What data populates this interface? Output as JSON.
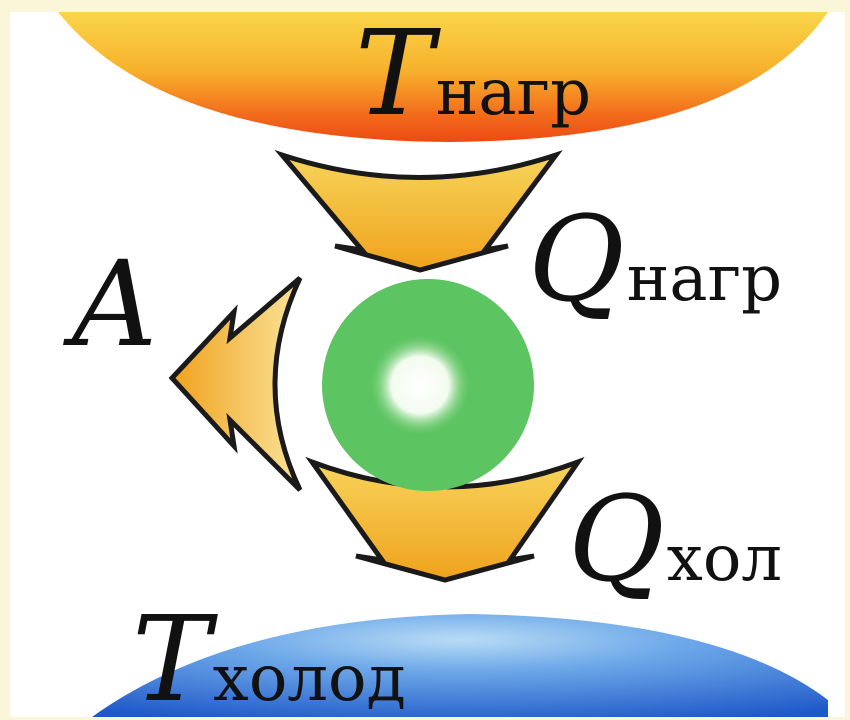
{
  "diagram": {
    "hot_reservoir": {
      "symbol": "T",
      "subscript": "нагр",
      "color": "#f26a1b"
    },
    "cold_reservoir": {
      "symbol": "T",
      "subscript": "холод",
      "color": "#2f6fd6"
    },
    "heat_in": {
      "symbol": "Q",
      "subscript": "нагр"
    },
    "heat_out": {
      "symbol": "Q",
      "subscript": "хол"
    },
    "work": {
      "symbol": "A"
    },
    "engine": {
      "color": "#5cc460"
    },
    "arrow_color": "#f5b52a"
  }
}
